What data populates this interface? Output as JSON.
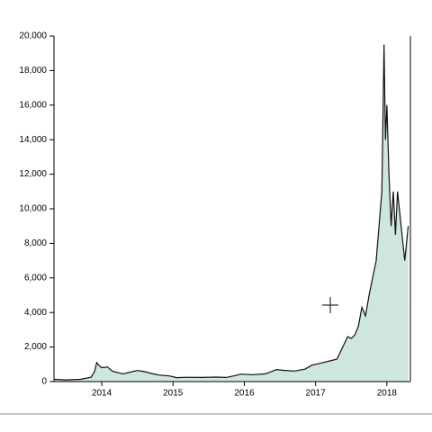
{
  "chart_data": {
    "type": "area",
    "x": [
      2013.33,
      2013.5,
      2013.7,
      2013.85,
      2013.9,
      2013.93,
      2013.97,
      2014.0,
      2014.08,
      2014.15,
      2014.3,
      2014.45,
      2014.5,
      2014.6,
      2014.7,
      2014.8,
      2014.95,
      2015.05,
      2015.2,
      2015.4,
      2015.6,
      2015.75,
      2015.85,
      2015.95,
      2016.1,
      2016.3,
      2016.45,
      2016.55,
      2016.7,
      2016.85,
      2016.95,
      2017.0,
      2017.1,
      2017.2,
      2017.3,
      2017.38,
      2017.45,
      2017.5,
      2017.55,
      2017.6,
      2017.65,
      2017.7,
      2017.75,
      2017.8,
      2017.85,
      2017.9,
      2017.93,
      2017.96,
      2017.98,
      2018.0,
      2018.03,
      2018.06,
      2018.09,
      2018.12,
      2018.15,
      2018.2,
      2018.25,
      2018.3
    ],
    "values": [
      130,
      100,
      130,
      250,
      600,
      1100,
      900,
      800,
      850,
      600,
      450,
      600,
      640,
      580,
      470,
      380,
      330,
      230,
      250,
      240,
      260,
      240,
      330,
      430,
      400,
      450,
      700,
      650,
      610,
      720,
      960,
      1000,
      1100,
      1200,
      1300,
      2000,
      2600,
      2500,
      2700,
      3200,
      4300,
      3800,
      5000,
      6000,
      7000,
      9500,
      11000,
      19500,
      14000,
      16000,
      12000,
      9000,
      11000,
      8500,
      11000,
      9000,
      7000,
      9000
    ],
    "color": "#cfe5df",
    "xlim": [
      2013.33,
      2018.33
    ],
    "xticks": [
      2014,
      2015,
      2016,
      2017,
      2018
    ],
    "ylim": [
      0,
      20000
    ],
    "yticks": [
      0,
      {
        "value": 2000,
        "label": "2,000"
      },
      {
        "value": 4000,
        "label": "4,000"
      },
      {
        "value": 6000,
        "label": "6,000"
      },
      {
        "value": 8000,
        "label": "8,000"
      },
      {
        "value": 10000,
        "label": "10,000"
      },
      {
        "value": 12000,
        "label": "12,000"
      },
      {
        "value": 14000,
        "label": "14,000"
      },
      {
        "value": 16000,
        "label": "16,000"
      },
      {
        "value": 18000,
        "label": "18,000"
      },
      {
        "value": 20000,
        "label": "20,000"
      }
    ]
  }
}
